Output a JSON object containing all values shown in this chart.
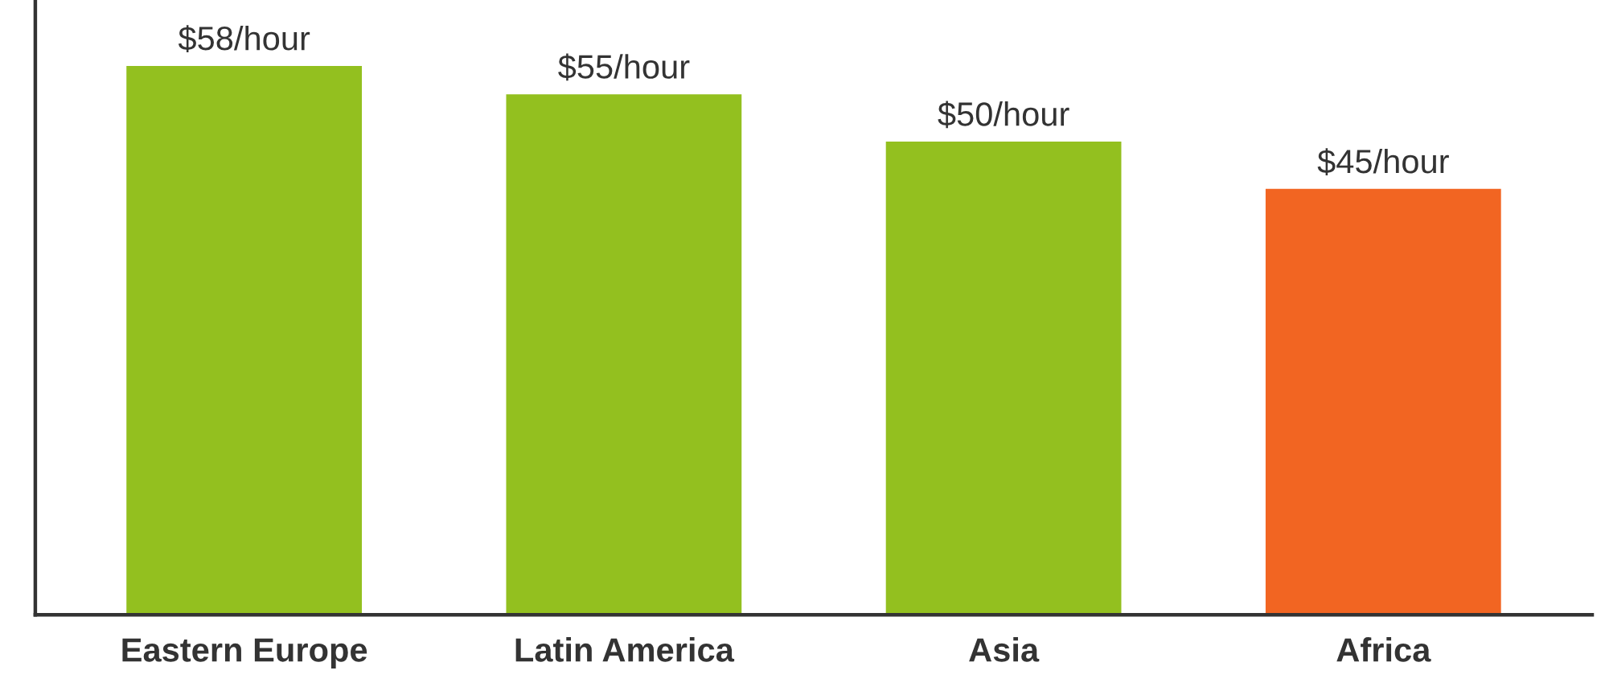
{
  "chart_data": {
    "type": "bar",
    "categories": [
      "Eastern Europe",
      "Latin America",
      "Asia",
      "Africa"
    ],
    "values": [
      58,
      55,
      50,
      45
    ],
    "colors": [
      "#93c01f",
      "#93c01f",
      "#93c01f",
      "#f26522"
    ],
    "value_labels": [
      "$58/hour",
      "$55/hour",
      "$50/hour",
      "$45/hour"
    ],
    "tick_labels": "x"
  }
}
